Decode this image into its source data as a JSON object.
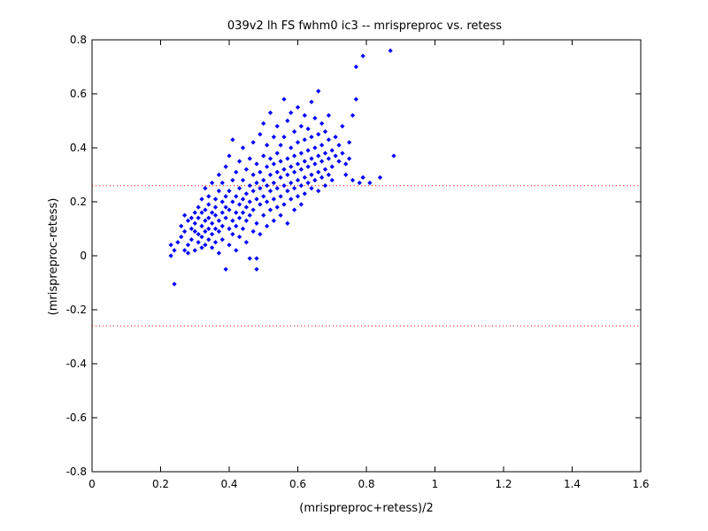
{
  "chart_data": {
    "type": "scatter",
    "title": "039v2 lh FS fwhm0 ic3 -- mrispreproc vs. retess",
    "xlabel": "(mrispreproc+retess)/2",
    "ylabel": "(mrispreproc-retess)",
    "xlim": [
      0,
      1.6
    ],
    "ylim": [
      -0.8,
      0.8
    ],
    "xticks": [
      0,
      0.2,
      0.4,
      0.6,
      0.8,
      1,
      1.2,
      1.4,
      1.6
    ],
    "xtick_labels": [
      "0",
      "0.2",
      "0.4",
      "0.6",
      "0.8",
      "1",
      "1.2",
      "1.4",
      "1.6"
    ],
    "yticks": [
      -0.8,
      -0.6,
      -0.4,
      -0.2,
      0,
      0.2,
      0.4,
      0.6,
      0.8
    ],
    "ytick_labels": [
      "-0.8",
      "-0.6",
      "-0.4",
      "-0.2",
      "0",
      "0.2",
      "0.4",
      "0.6",
      "0.8"
    ],
    "grid": false,
    "legend": "none",
    "reference_lines": [
      {
        "orientation": "horizontal",
        "y": 0.26,
        "color": "#ff0000",
        "style": "dotted"
      },
      {
        "orientation": "horizontal",
        "y": -0.26,
        "color": "#ff0000",
        "style": "dotted"
      }
    ],
    "series": [
      {
        "color": "#0000ff",
        "marker": "diamond",
        "points": [
          [
            0.24,
            -0.105
          ],
          [
            0.23,
            0.0
          ],
          [
            0.23,
            0.04
          ],
          [
            0.24,
            0.02
          ],
          [
            0.25,
            0.05
          ],
          [
            0.26,
            0.11
          ],
          [
            0.26,
            0.07
          ],
          [
            0.27,
            0.15
          ],
          [
            0.27,
            0.02
          ],
          [
            0.27,
            0.09
          ],
          [
            0.28,
            0.13
          ],
          [
            0.28,
            0.04
          ],
          [
            0.28,
            0.01
          ],
          [
            0.29,
            0.1
          ],
          [
            0.29,
            0.06
          ],
          [
            0.29,
            0.14
          ],
          [
            0.3,
            0.02
          ],
          [
            0.3,
            0.16
          ],
          [
            0.3,
            0.09
          ],
          [
            0.3,
            0.12
          ],
          [
            0.31,
            0.05
          ],
          [
            0.31,
            0.18
          ],
          [
            0.31,
            0.08
          ],
          [
            0.31,
            0.14
          ],
          [
            0.32,
            0.03
          ],
          [
            0.32,
            0.21
          ],
          [
            0.32,
            0.11
          ],
          [
            0.32,
            0.16
          ],
          [
            0.32,
            0.07
          ],
          [
            0.33,
            0.13
          ],
          [
            0.33,
            0.25
          ],
          [
            0.33,
            0.09
          ],
          [
            0.33,
            0.04
          ],
          [
            0.33,
            0.17
          ],
          [
            0.34,
            0.1
          ],
          [
            0.34,
            0.19
          ],
          [
            0.34,
            0.06
          ],
          [
            0.34,
            0.14
          ],
          [
            0.34,
            0.22
          ],
          [
            0.35,
            0.12
          ],
          [
            0.35,
            0.08
          ],
          [
            0.35,
            0.16
          ],
          [
            0.35,
            0.27
          ],
          [
            0.35,
            0.03
          ],
          [
            0.36,
            0.15
          ],
          [
            0.36,
            0.1
          ],
          [
            0.36,
            0.21
          ],
          [
            0.36,
            0.05
          ],
          [
            0.36,
            0.18
          ],
          [
            0.37,
            0.13
          ],
          [
            0.37,
            0.24
          ],
          [
            0.37,
            0.09
          ],
          [
            0.37,
            0.3
          ],
          [
            0.37,
            0.01
          ],
          [
            0.38,
            0.16
          ],
          [
            0.38,
            0.2
          ],
          [
            0.38,
            0.11
          ],
          [
            0.38,
            0.27
          ],
          [
            0.38,
            0.06
          ],
          [
            0.39,
            0.18
          ],
          [
            0.39,
            0.22
          ],
          [
            0.39,
            0.14
          ],
          [
            0.39,
            0.33
          ],
          [
            0.39,
            -0.05
          ],
          [
            0.4,
            0.1
          ],
          [
            0.4,
            0.24
          ],
          [
            0.4,
            0.17
          ],
          [
            0.4,
            0.37
          ],
          [
            0.4,
            0.04
          ],
          [
            0.41,
            0.2
          ],
          [
            0.41,
            0.13
          ],
          [
            0.41,
            0.28
          ],
          [
            0.41,
            0.43
          ],
          [
            0.41,
            0.08
          ],
          [
            0.42,
            0.22
          ],
          [
            0.42,
            0.16
          ],
          [
            0.42,
            0.31
          ],
          [
            0.42,
            0.11
          ],
          [
            0.42,
            0.02
          ],
          [
            0.43,
            0.19
          ],
          [
            0.43,
            0.25
          ],
          [
            0.43,
            0.14
          ],
          [
            0.43,
            0.35
          ],
          [
            0.43,
            0.07
          ],
          [
            0.44,
            0.21
          ],
          [
            0.44,
            0.28
          ],
          [
            0.44,
            0.16
          ],
          [
            0.44,
            0.4
          ],
          [
            0.44,
            0.1
          ],
          [
            0.45,
            0.23
          ],
          [
            0.45,
            0.18
          ],
          [
            0.45,
            0.32
          ],
          [
            0.45,
            0.13
          ],
          [
            0.45,
            0.05
          ],
          [
            0.46,
            0.26
          ],
          [
            0.46,
            0.2
          ],
          [
            0.46,
            0.36
          ],
          [
            0.46,
            0.15
          ],
          [
            0.46,
            -0.01
          ],
          [
            0.47,
            0.24
          ],
          [
            0.47,
            0.3
          ],
          [
            0.47,
            0.17
          ],
          [
            0.47,
            0.42
          ],
          [
            0.47,
            0.09
          ],
          [
            0.48,
            0.27
          ],
          [
            0.48,
            0.21
          ],
          [
            0.48,
            0.34
          ],
          [
            0.48,
            0.12
          ],
          [
            0.48,
            -0.05
          ],
          [
            0.48,
            -0.01
          ],
          [
            0.49,
            0.25
          ],
          [
            0.49,
            0.31
          ],
          [
            0.49,
            0.19
          ],
          [
            0.49,
            0.45
          ],
          [
            0.49,
            0.08
          ],
          [
            0.5,
            0.28
          ],
          [
            0.5,
            0.22
          ],
          [
            0.5,
            0.37
          ],
          [
            0.5,
            0.15
          ],
          [
            0.5,
            0.49
          ],
          [
            0.51,
            0.26
          ],
          [
            0.51,
            0.33
          ],
          [
            0.51,
            0.2
          ],
          [
            0.51,
            0.41
          ],
          [
            0.51,
            0.11
          ],
          [
            0.52,
            0.3
          ],
          [
            0.52,
            0.24
          ],
          [
            0.52,
            0.36
          ],
          [
            0.52,
            0.17
          ],
          [
            0.52,
            0.53
          ],
          [
            0.53,
            0.27
          ],
          [
            0.53,
            0.34
          ],
          [
            0.53,
            0.21
          ],
          [
            0.53,
            0.44
          ],
          [
            0.53,
            0.13
          ],
          [
            0.54,
            0.31
          ],
          [
            0.54,
            0.25
          ],
          [
            0.54,
            0.38
          ],
          [
            0.54,
            0.18
          ],
          [
            0.54,
            0.48
          ],
          [
            0.55,
            0.29
          ],
          [
            0.55,
            0.35
          ],
          [
            0.55,
            0.22
          ],
          [
            0.55,
            0.41
          ],
          [
            0.55,
            0.15
          ],
          [
            0.56,
            0.32
          ],
          [
            0.56,
            0.26
          ],
          [
            0.56,
            0.58
          ],
          [
            0.56,
            0.19
          ],
          [
            0.56,
            0.44
          ],
          [
            0.57,
            0.3
          ],
          [
            0.57,
            0.36
          ],
          [
            0.57,
            0.24
          ],
          [
            0.57,
            0.5
          ],
          [
            0.57,
            0.12
          ],
          [
            0.58,
            0.33
          ],
          [
            0.58,
            0.27
          ],
          [
            0.58,
            0.4
          ],
          [
            0.58,
            0.21
          ],
          [
            0.58,
            0.53
          ],
          [
            0.59,
            0.31
          ],
          [
            0.59,
            0.37
          ],
          [
            0.59,
            0.25
          ],
          [
            0.59,
            0.46
          ],
          [
            0.59,
            0.17
          ],
          [
            0.6,
            0.34
          ],
          [
            0.6,
            0.28
          ],
          [
            0.6,
            0.42
          ],
          [
            0.6,
            0.22
          ],
          [
            0.6,
            0.55
          ],
          [
            0.61,
            0.32
          ],
          [
            0.61,
            0.38
          ],
          [
            0.61,
            0.26
          ],
          [
            0.61,
            0.48
          ],
          [
            0.61,
            0.19
          ],
          [
            0.62,
            0.35
          ],
          [
            0.62,
            0.29
          ],
          [
            0.62,
            0.43
          ],
          [
            0.62,
            0.23
          ],
          [
            0.62,
            0.52
          ],
          [
            0.63,
            0.33
          ],
          [
            0.63,
            0.39
          ],
          [
            0.63,
            0.27
          ],
          [
            0.63,
            0.47
          ],
          [
            0.64,
            0.36
          ],
          [
            0.64,
            0.3
          ],
          [
            0.64,
            0.44
          ],
          [
            0.64,
            0.25
          ],
          [
            0.64,
            0.57
          ],
          [
            0.65,
            0.34
          ],
          [
            0.65,
            0.4
          ],
          [
            0.65,
            0.28
          ],
          [
            0.65,
            0.51
          ],
          [
            0.66,
            0.37
          ],
          [
            0.66,
            0.31
          ],
          [
            0.66,
            0.45
          ],
          [
            0.66,
            0.24
          ],
          [
            0.66,
            0.61
          ],
          [
            0.67,
            0.35
          ],
          [
            0.67,
            0.41
          ],
          [
            0.67,
            0.29
          ],
          [
            0.67,
            0.49
          ],
          [
            0.68,
            0.38
          ],
          [
            0.68,
            0.32
          ],
          [
            0.68,
            0.46
          ],
          [
            0.68,
            0.26
          ],
          [
            0.69,
            0.36
          ],
          [
            0.69,
            0.43
          ],
          [
            0.69,
            0.3
          ],
          [
            0.69,
            0.52
          ],
          [
            0.7,
            0.39
          ],
          [
            0.7,
            0.33
          ],
          [
            0.7,
            0.28
          ],
          [
            0.71,
            0.37
          ],
          [
            0.71,
            0.44
          ],
          [
            0.72,
            0.35
          ],
          [
            0.72,
            0.41
          ],
          [
            0.73,
            0.38
          ],
          [
            0.73,
            0.48
          ],
          [
            0.74,
            0.34
          ],
          [
            0.74,
            0.3
          ],
          [
            0.75,
            0.36
          ],
          [
            0.75,
            0.42
          ],
          [
            0.76,
            0.28
          ],
          [
            0.76,
            0.52
          ],
          [
            0.77,
            0.58
          ],
          [
            0.77,
            0.7
          ],
          [
            0.78,
            0.27
          ],
          [
            0.79,
            0.74
          ],
          [
            0.79,
            0.29
          ],
          [
            0.81,
            0.27
          ],
          [
            0.84,
            0.29
          ],
          [
            0.87,
            0.76
          ],
          [
            0.88,
            0.37
          ]
        ]
      }
    ]
  }
}
